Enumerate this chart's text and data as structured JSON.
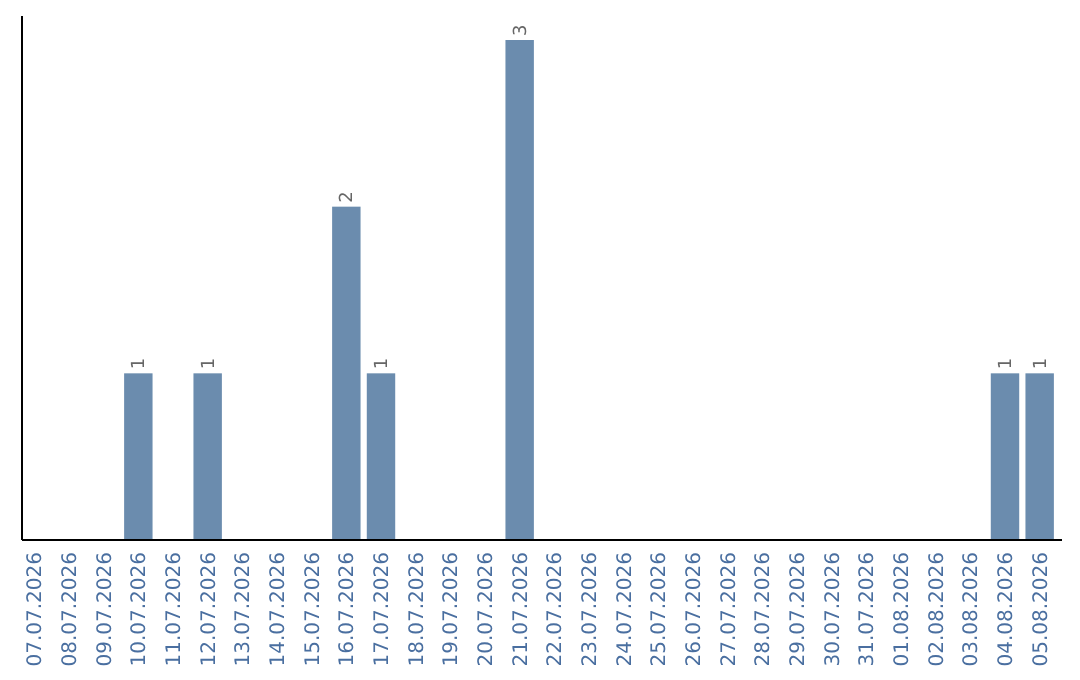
{
  "chart_data": {
    "type": "bar",
    "categories": [
      "07.07.2026",
      "08.07.2026",
      "09.07.2026",
      "10.07.2026",
      "11.07.2026",
      "12.07.2026",
      "13.07.2026",
      "14.07.2026",
      "15.07.2026",
      "16.07.2026",
      "17.07.2026",
      "18.07.2026",
      "19.07.2026",
      "20.07.2026",
      "21.07.2026",
      "22.07.2026",
      "23.07.2026",
      "24.07.2026",
      "25.07.2026",
      "26.07.2026",
      "27.07.2026",
      "28.07.2026",
      "29.07.2026",
      "30.07.2026",
      "31.07.2026",
      "01.08.2026",
      "02.08.2026",
      "03.08.2026",
      "04.08.2026",
      "05.08.2026"
    ],
    "values": [
      0,
      0,
      0,
      1,
      0,
      1,
      0,
      0,
      0,
      2,
      1,
      0,
      0,
      0,
      3,
      0,
      0,
      0,
      0,
      0,
      0,
      0,
      0,
      0,
      0,
      0,
      0,
      0,
      1,
      1
    ],
    "value_labels": [
      null,
      null,
      null,
      "1",
      null,
      "1",
      null,
      null,
      null,
      "2",
      "1",
      null,
      null,
      null,
      "3",
      null,
      null,
      null,
      null,
      null,
      null,
      null,
      null,
      null,
      null,
      null,
      null,
      null,
      "1",
      "1"
    ],
    "color": "#6b8cae"
  }
}
